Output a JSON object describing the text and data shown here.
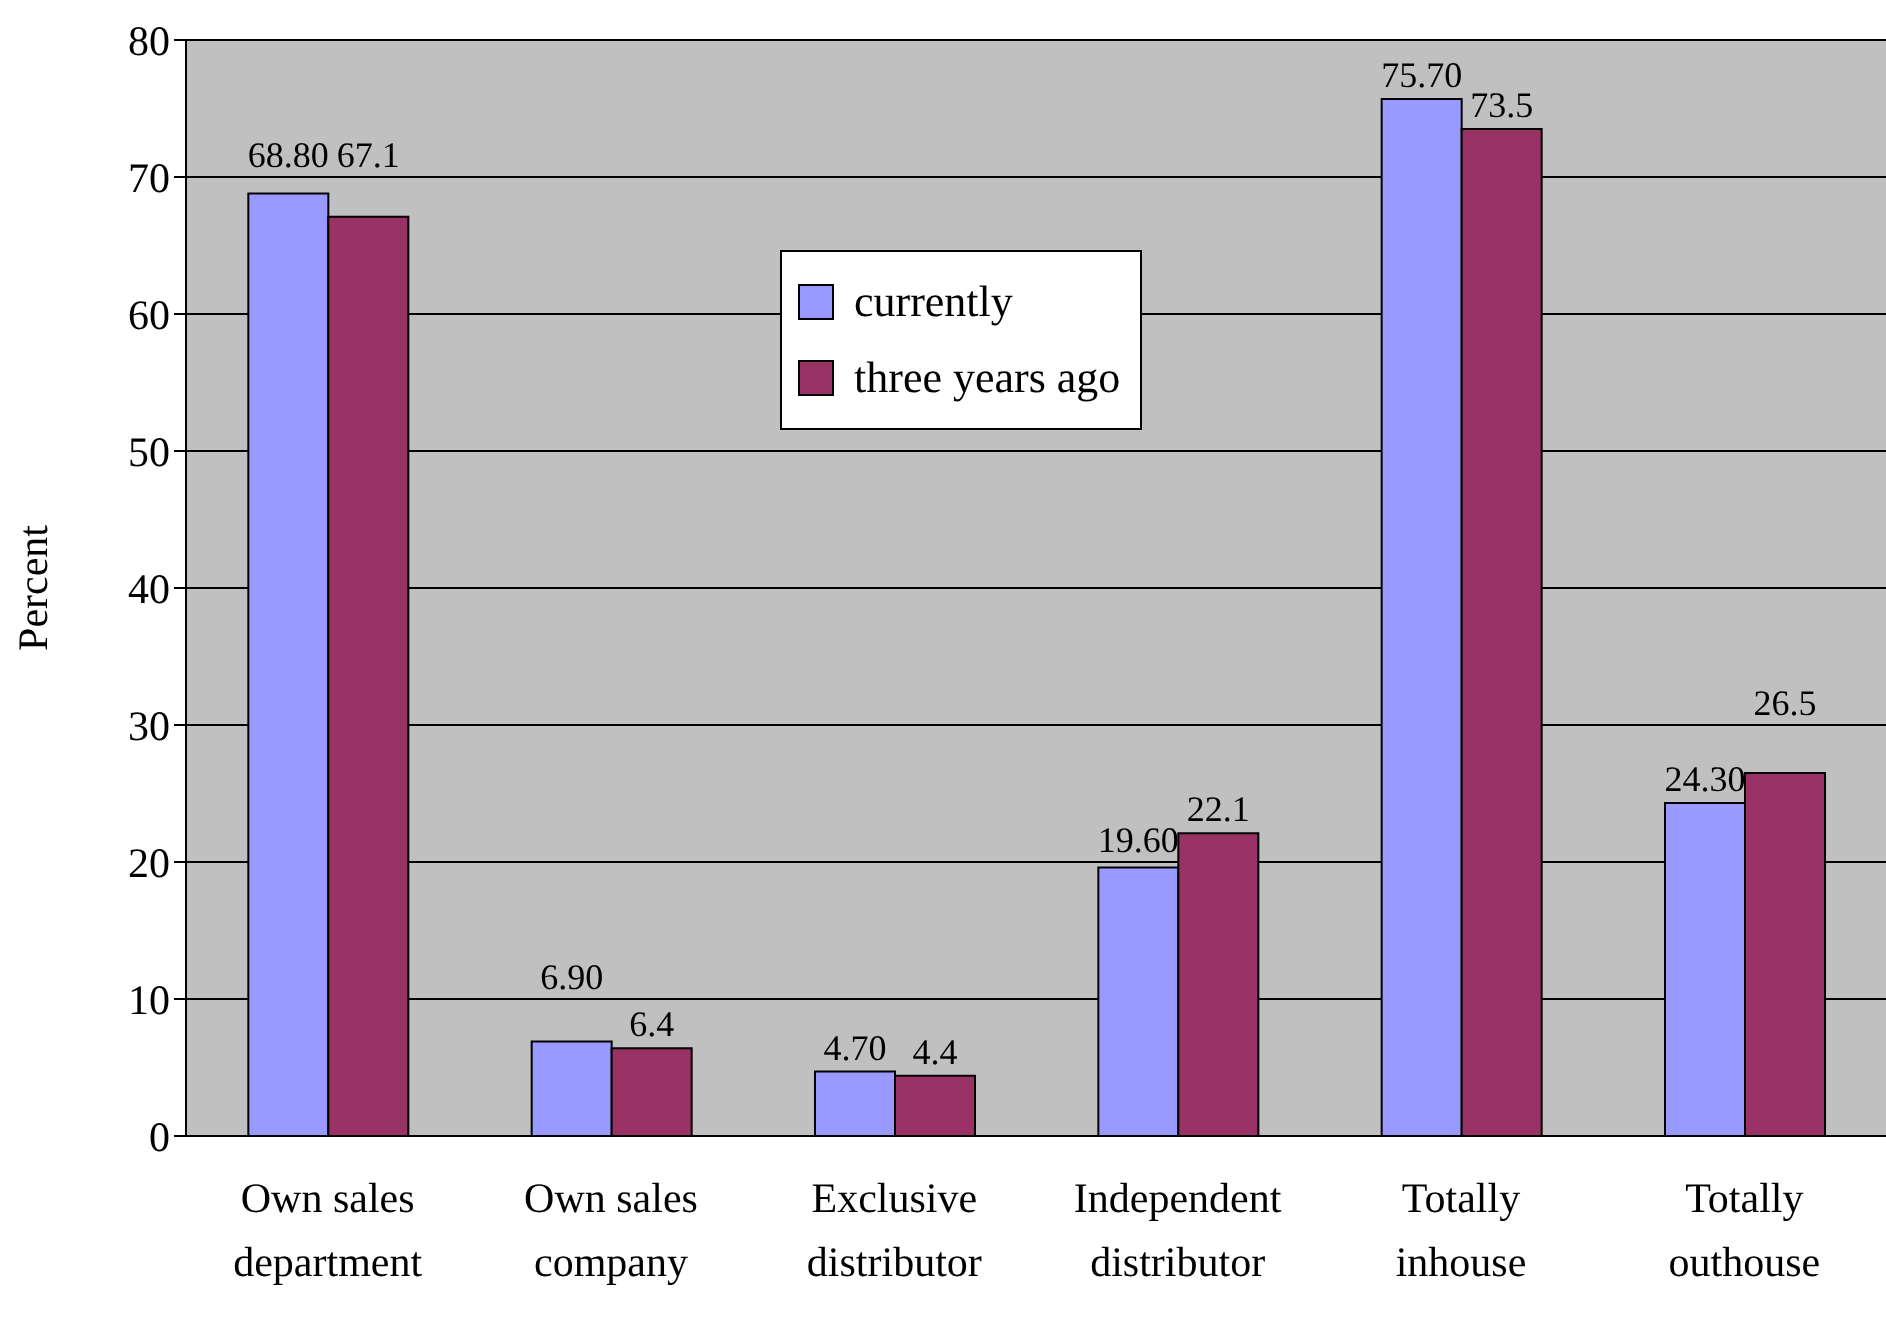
{
  "chart_data": {
    "type": "bar",
    "ylabel": "Percent",
    "categories": [
      "Own sales department",
      "Own sales company",
      "Exclusive distributor",
      "Independent distributor",
      "Totally inhouse",
      "Totally outhouse"
    ],
    "series": [
      {
        "name": "currently",
        "color": "#9999ff",
        "values": [
          68.8,
          6.9,
          4.7,
          19.6,
          75.7,
          24.3
        ],
        "value_labels": [
          "68.80",
          "6.90",
          "4.70",
          "19.60",
          "75.70",
          "24.30"
        ]
      },
      {
        "name": "three years ago",
        "color": "#993366",
        "values": [
          67.1,
          6.4,
          4.4,
          22.1,
          73.5,
          26.5
        ],
        "value_labels": [
          "67.1",
          "6.4",
          "4.4",
          "22.1",
          "73.5",
          "26.5"
        ]
      }
    ],
    "ylim": [
      0,
      80
    ],
    "yticks": [
      0,
      10,
      20,
      30,
      40,
      50,
      60,
      70,
      80
    ],
    "grid": "y",
    "legend": "top"
  }
}
